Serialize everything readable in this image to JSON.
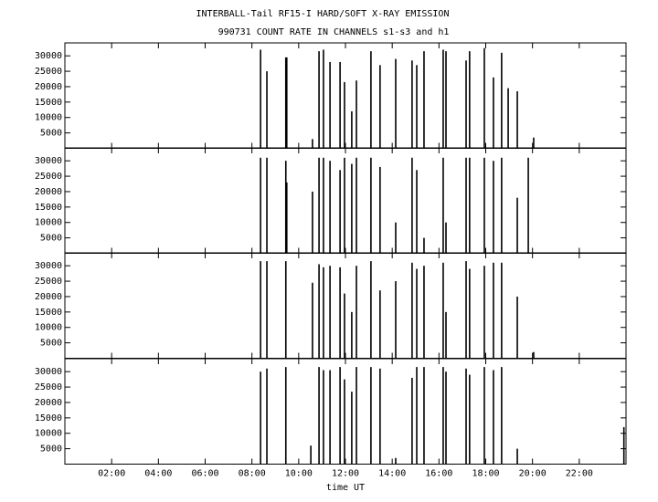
{
  "chart_data": [
    {
      "type": "bar",
      "title": "INTERBALL-Tail RF15-I HARD/SOFT X-RAY EMISSION",
      "subtitle": "990731  COUNT RATE IN CHANNELS s1-s3 and h1",
      "x": [
        8.37,
        8.64,
        9.45,
        9.49,
        10.59,
        10.87,
        11.06,
        11.34,
        11.77,
        11.96,
        12.27,
        12.47,
        13.09,
        13.48,
        14.15,
        14.85,
        15.05,
        15.36,
        16.18,
        16.3,
        17.16,
        17.31,
        17.94,
        18.33,
        18.68,
        18.96,
        19.35,
        20.05
      ],
      "values": [
        32000,
        25000,
        29500,
        29500,
        3000,
        31500,
        32000,
        28000,
        28000,
        21500,
        12000,
        22000,
        31500,
        27000,
        29000,
        28500,
        27000,
        31500,
        32000,
        31500,
        28500,
        31500,
        32500,
        23000,
        31000,
        19500,
        18500,
        3500
      ],
      "xlim": [
        0,
        24
      ],
      "ylim": [
        0,
        34200
      ],
      "yticks": [
        5000,
        10000,
        15000,
        20000,
        25000,
        30000
      ]
    },
    {
      "type": "bar",
      "x": [
        8.37,
        8.64,
        9.45,
        9.49,
        10.59,
        10.87,
        11.06,
        11.34,
        11.77,
        11.96,
        12.27,
        12.47,
        13.09,
        13.48,
        14.15,
        14.85,
        15.05,
        15.36,
        16.18,
        16.3,
        17.16,
        17.31,
        17.94,
        18.33,
        18.68,
        19.35,
        19.82
      ],
      "values": [
        31000,
        31000,
        30000,
        23000,
        20000,
        31000,
        31000,
        30000,
        27000,
        31000,
        29000,
        31000,
        31000,
        28000,
        10000,
        31000,
        27000,
        5000,
        31000,
        10000,
        31000,
        31000,
        31000,
        30000,
        31000,
        18000,
        31000
      ],
      "xlim": [
        0,
        24
      ],
      "ylim": [
        0,
        34200
      ],
      "yticks": [
        5000,
        10000,
        15000,
        20000,
        25000,
        30000
      ]
    },
    {
      "type": "bar",
      "x": [
        8.37,
        8.64,
        9.45,
        10.59,
        10.87,
        11.06,
        11.34,
        11.77,
        11.96,
        12.27,
        12.47,
        13.09,
        13.48,
        14.15,
        14.85,
        15.05,
        15.36,
        16.18,
        16.3,
        17.16,
        17.31,
        17.94,
        18.33,
        18.68,
        19.35,
        20.05
      ],
      "values": [
        31500,
        31500,
        31500,
        24500,
        30500,
        29500,
        30000,
        29500,
        21000,
        15000,
        30000,
        31500,
        22000,
        25000,
        31000,
        29000,
        30000,
        31000,
        15000,
        31500,
        29000,
        30000,
        31000,
        31000,
        20000,
        2000
      ],
      "xlim": [
        0,
        24
      ],
      "ylim": [
        0,
        34200
      ],
      "yticks": [
        5000,
        10000,
        15000,
        20000,
        25000,
        30000
      ]
    },
    {
      "type": "bar",
      "xlabel": "time UT",
      "x": [
        8.37,
        8.64,
        9.45,
        10.52,
        10.87,
        11.06,
        11.34,
        11.77,
        11.96,
        12.27,
        12.47,
        13.09,
        13.48,
        14.15,
        14.85,
        15.05,
        15.36,
        16.18,
        16.3,
        17.16,
        17.31,
        17.94,
        18.33,
        18.68,
        19.35,
        23.91
      ],
      "values": [
        30000,
        31000,
        31500,
        6000,
        31500,
        30500,
        30500,
        31500,
        27500,
        23500,
        31500,
        31500,
        31000,
        2000,
        28000,
        31500,
        31500,
        31500,
        30000,
        31000,
        29000,
        31500,
        30500,
        31500,
        5000,
        12000
      ],
      "xlim": [
        0,
        24
      ],
      "ylim": [
        0,
        34200
      ],
      "yticks": [
        5000,
        10000,
        15000,
        20000,
        25000,
        30000
      ],
      "xticks": [
        {
          "value": 2,
          "label": "02:00"
        },
        {
          "value": 4,
          "label": "04:00"
        },
        {
          "value": 6,
          "label": "06:00"
        },
        {
          "value": 8,
          "label": "08:00"
        },
        {
          "value": 10,
          "label": "10:00"
        },
        {
          "value": 12,
          "label": "12:00"
        },
        {
          "value": 14,
          "label": "14:00"
        },
        {
          "value": 16,
          "label": "16:00"
        },
        {
          "value": 18,
          "label": "18:00"
        },
        {
          "value": 20,
          "label": "20:00"
        },
        {
          "value": 22,
          "label": "22:00"
        }
      ]
    }
  ]
}
